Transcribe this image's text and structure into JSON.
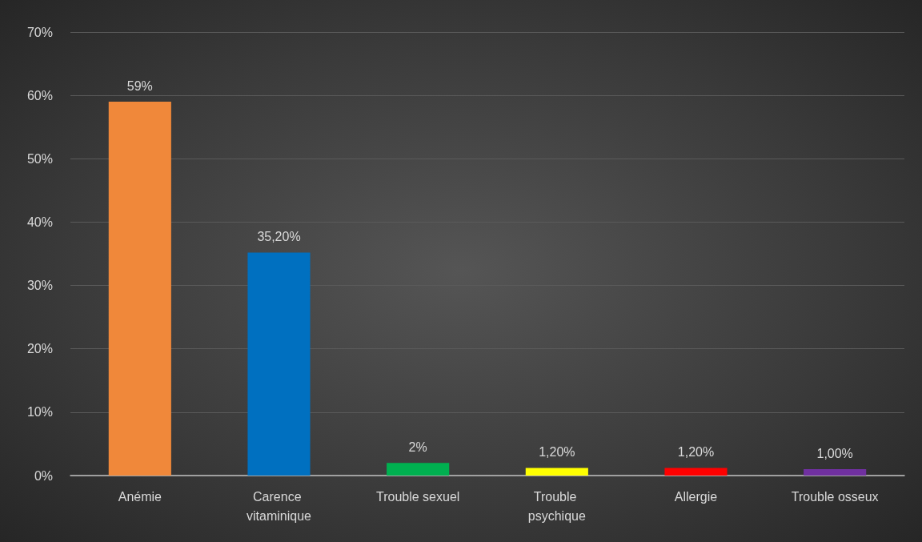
{
  "chart_data": {
    "type": "bar",
    "categories": [
      "Anémie",
      "Carence vitaminique",
      "Trouble sexuel",
      "Trouble psychique",
      "Allergie",
      "Trouble osseux"
    ],
    "values": [
      59,
      35.2,
      2,
      1.2,
      1.2,
      1.0
    ],
    "colors": [
      "#f0883a",
      "#0070c0",
      "#00b050",
      "#ffff00",
      "#ff0000",
      "#7030a0"
    ],
    "value_labels": [
      "59%",
      "35,20%",
      "2%",
      "1,20%",
      "1,20%",
      "1,00%"
    ],
    "ylim": [
      0,
      70
    ],
    "yticks": [
      {
        "value": 0,
        "label": "0%"
      },
      {
        "value": 10,
        "label": "10%"
      },
      {
        "value": 20,
        "label": "20%"
      },
      {
        "value": 30,
        "label": "30%"
      },
      {
        "value": 40,
        "label": "40%"
      },
      {
        "value": 50,
        "label": "50%"
      },
      {
        "value": 60,
        "label": "60%"
      },
      {
        "value": 70,
        "label": "70%"
      }
    ],
    "grid": "y"
  }
}
